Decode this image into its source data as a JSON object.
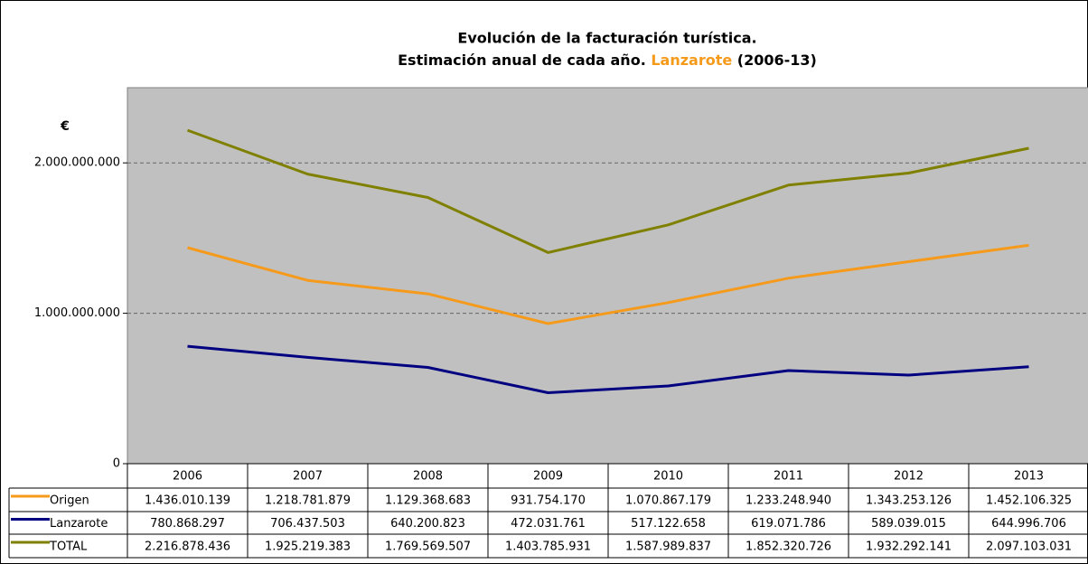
{
  "chart_data": {
    "type": "line",
    "title": "Evolución de la facturación turística.",
    "subtitle": [
      "Estimación anual de cada año.",
      "Lanzarote",
      "(2006-13)"
    ],
    "subtitle_highlight_color": "#f59a1b",
    "y_label": "€",
    "categories": [
      "2006",
      "2007",
      "2008",
      "2009",
      "2010",
      "2011",
      "2012",
      "2013"
    ],
    "series": [
      {
        "name": "Origen",
        "color": "#f59a1b",
        "values": [
          1436010139,
          1218781879,
          1129368683,
          931754170,
          1070867179,
          1233248940,
          1343253126,
          1452106325
        ],
        "value_labels": [
          "1.436.010.139",
          "1.218.781.879",
          "1.129.368.683",
          "931.754.170",
          "1.070.867.179",
          "1.233.248.940",
          "1.343.253.126",
          "1.452.106.325"
        ]
      },
      {
        "name": "Lanzarote",
        "color": "#000080",
        "values": [
          780868297,
          706437503,
          640200823,
          472031761,
          517122658,
          619071786,
          589039015,
          644996706
        ],
        "value_labels": [
          "780.868.297",
          "706.437.503",
          "640.200.823",
          "472.031.761",
          "517.122.658",
          "619.071.786",
          "589.039.015",
          "644.996.706"
        ]
      },
      {
        "name": "TOTAL",
        "color": "#808000",
        "values": [
          2216878436,
          1925219383,
          1769569507,
          1403785931,
          1587989837,
          1852320726,
          1932292141,
          2097103031
        ],
        "value_labels": [
          "2.216.878.436",
          "1.925.219.383",
          "1.769.569.507",
          "1.403.785.931",
          "1.587.989.837",
          "1.852.320.726",
          "1.932.292.141",
          "2.097.103.031"
        ]
      }
    ],
    "ylim": [
      0,
      2500000000
    ],
    "yticks": [
      0,
      {
        "value": 1000000000,
        "label": "1.000.000.000"
      },
      {
        "value": 2000000000,
        "label": "2.000.000.000"
      }
    ],
    "grid": true,
    "plot_background": "#c0c0c0"
  }
}
